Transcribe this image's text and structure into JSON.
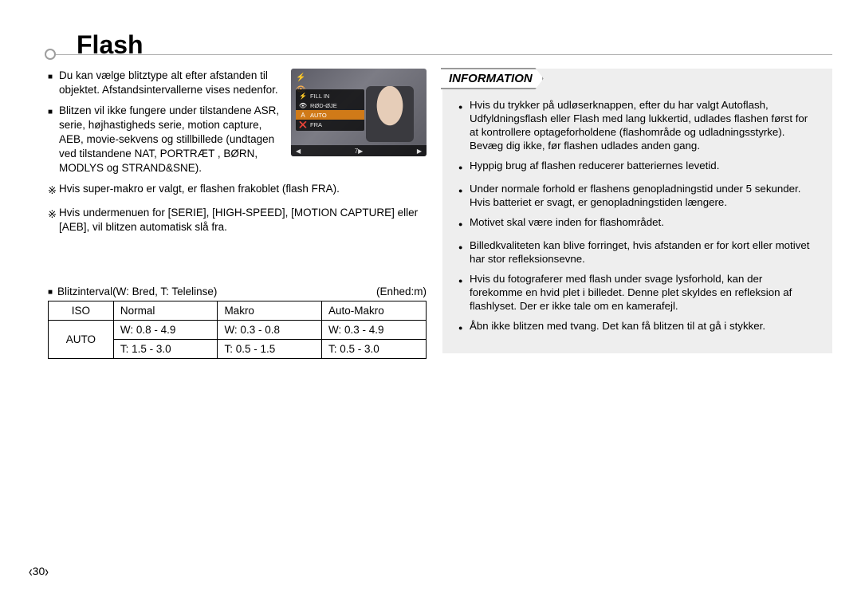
{
  "title": "Flash",
  "page_number": "30",
  "left": {
    "bullets_top": [
      "Du kan vælge blitztype alt efter afstanden til objektet. Afstandsintervallerne vises nedenfor.",
      "Blitzen vil ikke fungere under tilstandene ASR, serie, højhastigheds serie, motion capture, AEB, movie-sekvens og stillbillede (undtagen ved tilstandene NAT, PORTRÆT , BØRN, MODLYS og STRAND&SNE)."
    ],
    "bullets_notes": [
      "Hvis super-makro er valgt, er flashen frakoblet (flash FRA).",
      "Hvis undermenuen for [SERIE], [HIGH-SPEED], [MOTION CAPTURE] eller [AEB], vil blitzen automatisk slå fra."
    ],
    "interval_label": "Blitzinterval(W: Bred, T: Telelinse)",
    "interval_unit": "(Enhed:m)",
    "table": {
      "headers": [
        "ISO",
        "Normal",
        "Makro",
        "Auto-Makro"
      ],
      "row_iso": "AUTO",
      "rows": [
        [
          "W: 0.8 - 4.9",
          "W: 0.3 - 0.8",
          "W: 0.3 - 4.9"
        ],
        [
          "T: 1.5 - 3.0",
          "T: 0.5 - 1.5",
          "T: 0.5 - 3.0"
        ]
      ]
    }
  },
  "lcd": {
    "menu": [
      "FILL IN",
      "RØD-ØJE",
      "AUTO",
      "FRA"
    ],
    "bottom_left": "◀",
    "bottom_mid": "7▶",
    "bottom_right": "▶"
  },
  "info": {
    "heading": "INFORMATION",
    "items": [
      "Hvis du trykker på udløserknappen, efter du har valgt Autoflash, Udfyldningsflash eller Flash med lang lukkertid, udlades flashen først for at kontrollere optageforholdene (flashområde og udladningsstyrke).\nBevæg dig ikke, før flashen udlades anden gang.",
      "Hyppig brug af flashen reducerer batteriernes levetid.",
      "Under normale forhold er flashens genopladningstid under 5 sekunder. Hvis batteriet er svagt, er genopladningstiden længere.",
      "Motivet skal være inden for flashområdet.",
      "Billedkvaliteten kan blive forringet, hvis afstanden er for kort eller motivet har stor refleksionsevne.",
      "Hvis du fotograferer med flash under svage lysforhold, kan der forekomme en hvid plet i billedet. Denne plet skyldes en refleksion af flashlyset. Der er ikke tale om en kamerafejl.",
      "Åbn ikke blitzen med tvang. Det kan få blitzen til at gå i stykker."
    ]
  }
}
